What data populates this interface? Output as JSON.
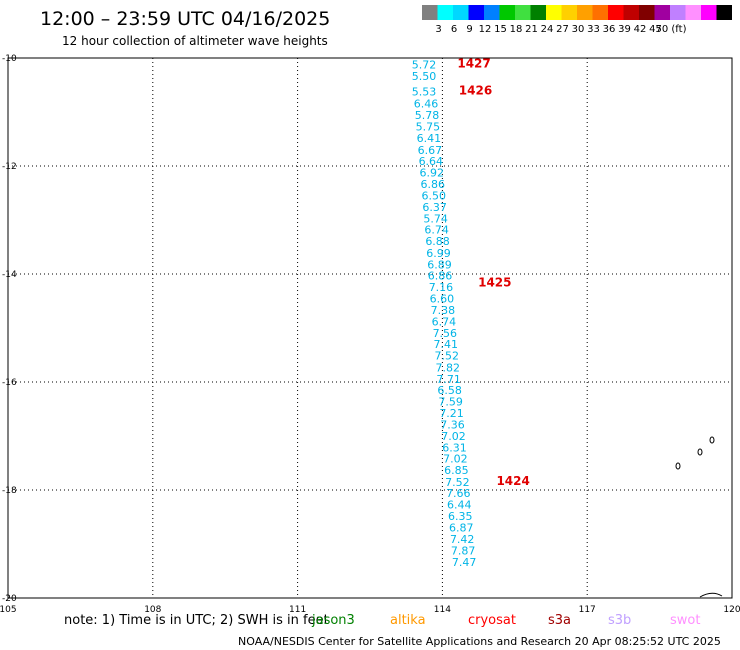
{
  "header": {
    "title": "12:00 – 23:59 UTC 04/16/2025",
    "subtitle": "12 hour collection of altimeter wave heights"
  },
  "colorbar": {
    "colors": [
      "#808080",
      "#00ffff",
      "#00d8ff",
      "#0000ff",
      "#0080ff",
      "#00c800",
      "#40e040",
      "#008000",
      "#ffff00",
      "#ffd000",
      "#ffa000",
      "#ff7000",
      "#ff0000",
      "#c00000",
      "#800000",
      "#a000a0",
      "#c080ff",
      "#ff90ff",
      "#ff00ff",
      "#000000"
    ],
    "labels": [
      "3",
      "6",
      "9",
      "12",
      "15",
      "18",
      "21",
      "24",
      "27",
      "30",
      "33",
      "36",
      "39",
      "42",
      "45",
      "70 (ft)"
    ]
  },
  "chart_data": {
    "type": "scatter",
    "title": "",
    "xlabel": "",
    "ylabel": "",
    "xlim": [
      105,
      120
    ],
    "ylim": [
      -20,
      -10
    ],
    "x_ticks": [
      "105",
      "108",
      "111",
      "114",
      "117",
      "120"
    ],
    "y_ticks": [
      "-10",
      "-12",
      "-14",
      "-16",
      "-18",
      "-20"
    ],
    "grid": true,
    "wave_labels": [
      {
        "x": 113.62,
        "y": -10.12,
        "text": "5.72"
      },
      {
        "x": 113.62,
        "y": -10.33,
        "text": "5.50"
      },
      {
        "x": 113.62,
        "y": -10.62,
        "text": "5.53"
      },
      {
        "x": 113.66,
        "y": -10.84,
        "text": "6.46"
      },
      {
        "x": 113.68,
        "y": -11.06,
        "text": "5.78"
      },
      {
        "x": 113.7,
        "y": -11.27,
        "text": "5.75"
      },
      {
        "x": 113.72,
        "y": -11.48,
        "text": "6.41"
      },
      {
        "x": 113.74,
        "y": -11.7,
        "text": "6.67"
      },
      {
        "x": 113.76,
        "y": -11.91,
        "text": "6.64"
      },
      {
        "x": 113.78,
        "y": -12.12,
        "text": "6.92"
      },
      {
        "x": 113.8,
        "y": -12.33,
        "text": "6.86"
      },
      {
        "x": 113.82,
        "y": -12.55,
        "text": "6.50"
      },
      {
        "x": 113.84,
        "y": -12.76,
        "text": "6.37"
      },
      {
        "x": 113.86,
        "y": -12.97,
        "text": "5.74"
      },
      {
        "x": 113.88,
        "y": -13.18,
        "text": "6.74"
      },
      {
        "x": 113.9,
        "y": -13.39,
        "text": "6.88"
      },
      {
        "x": 113.92,
        "y": -13.61,
        "text": "6.99"
      },
      {
        "x": 113.94,
        "y": -13.82,
        "text": "6.89"
      },
      {
        "x": 113.95,
        "y": -14.03,
        "text": "6.86"
      },
      {
        "x": 113.97,
        "y": -14.24,
        "text": "7.16"
      },
      {
        "x": 113.99,
        "y": -14.45,
        "text": "6.60"
      },
      {
        "x": 114.01,
        "y": -14.67,
        "text": "7.38"
      },
      {
        "x": 114.03,
        "y": -14.88,
        "text": "6.74"
      },
      {
        "x": 114.05,
        "y": -15.09,
        "text": "7.56"
      },
      {
        "x": 114.07,
        "y": -15.3,
        "text": "7.41"
      },
      {
        "x": 114.09,
        "y": -15.51,
        "text": "7.52"
      },
      {
        "x": 114.11,
        "y": -15.73,
        "text": "7.82"
      },
      {
        "x": 114.13,
        "y": -15.94,
        "text": "7.71"
      },
      {
        "x": 114.15,
        "y": -16.15,
        "text": "6.58"
      },
      {
        "x": 114.17,
        "y": -16.36,
        "text": "7.59"
      },
      {
        "x": 114.19,
        "y": -16.57,
        "text": "7.21"
      },
      {
        "x": 114.21,
        "y": -16.79,
        "text": "7.36"
      },
      {
        "x": 114.23,
        "y": -17.0,
        "text": "7.02"
      },
      {
        "x": 114.25,
        "y": -17.21,
        "text": "6.31"
      },
      {
        "x": 114.27,
        "y": -17.42,
        "text": "7.02"
      },
      {
        "x": 114.29,
        "y": -17.63,
        "text": "6.85"
      },
      {
        "x": 114.31,
        "y": -17.85,
        "text": "7.52"
      },
      {
        "x": 114.33,
        "y": -18.06,
        "text": "7.66"
      },
      {
        "x": 114.35,
        "y": -18.27,
        "text": "6.44"
      },
      {
        "x": 114.37,
        "y": -18.48,
        "text": "6.35"
      },
      {
        "x": 114.39,
        "y": -18.69,
        "text": "6.87"
      },
      {
        "x": 114.41,
        "y": -18.91,
        "text": "7.42"
      },
      {
        "x": 114.43,
        "y": -19.12,
        "text": "7.87"
      },
      {
        "x": 114.45,
        "y": -19.33,
        "text": "7.47"
      }
    ],
    "pass_labels": [
      {
        "x": 114.31,
        "y": -10.1,
        "text": "1427"
      },
      {
        "x": 114.34,
        "y": -10.6,
        "text": "1426"
      },
      {
        "x": 114.74,
        "y": -14.16,
        "text": "1425"
      },
      {
        "x": 115.12,
        "y": -17.83,
        "text": "1424"
      }
    ],
    "label_color": "#00b4e6",
    "pass_color": "#e00000"
  },
  "footer": {
    "note": "note:  1) Time is in UTC; 2) SWH is in feet",
    "satellites": [
      {
        "name": "jason3",
        "color": "#008000"
      },
      {
        "name": "altika",
        "color": "#ff9900"
      },
      {
        "name": "cryosat",
        "color": "#ff0000"
      },
      {
        "name": "s3a",
        "color": "#a00000"
      },
      {
        "name": "s3b",
        "color": "#c0a0ff"
      },
      {
        "name": "swot",
        "color": "#ff90ff"
      }
    ],
    "credit": "NOAA/NESDIS Center for Satellite Applications and Research    20 Apr 08:25:52 UTC 2025"
  }
}
